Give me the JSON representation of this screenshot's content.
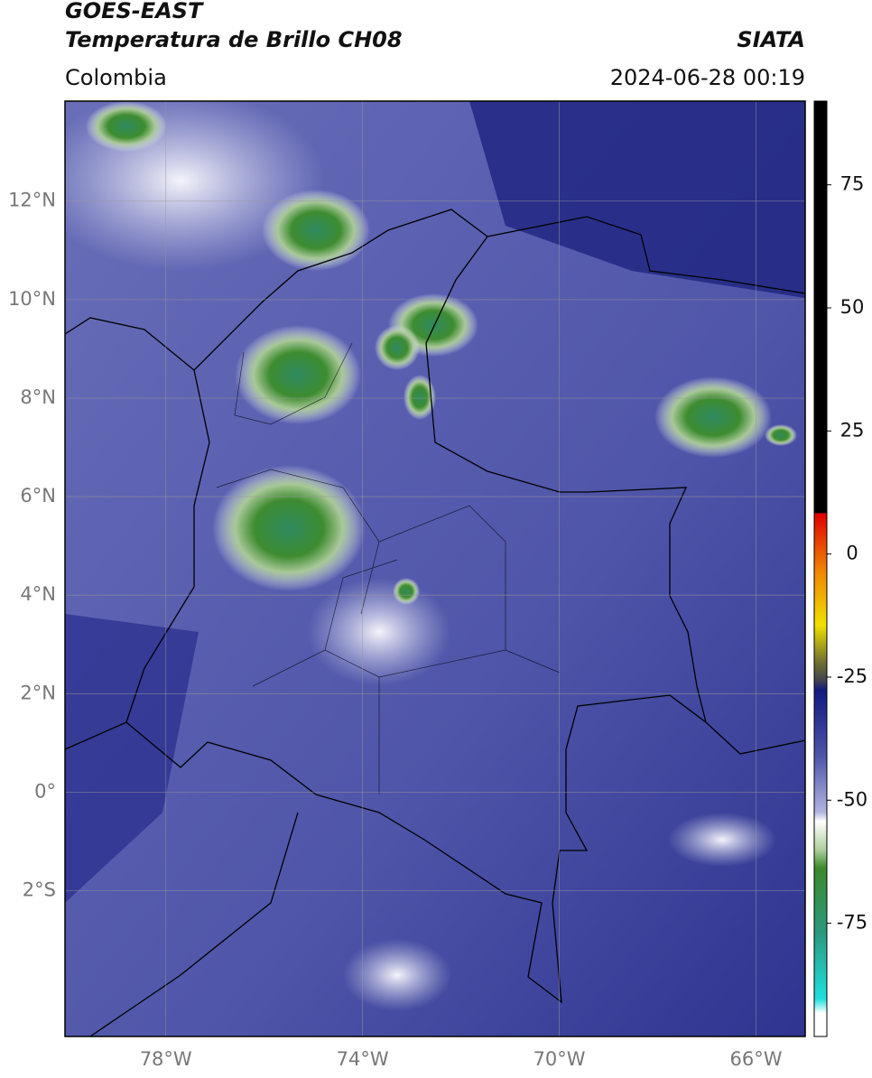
{
  "header": {
    "title": "GOES-EAST",
    "subtitle": "Temperatura de Brillo CH08",
    "source": "SIATA",
    "region": "Colombia",
    "timestamp": "2024-06-28 00:19"
  },
  "map": {
    "lat_range": [
      -4.96,
      14.03
    ],
    "lon_range": [
      -80.05,
      -65.0
    ],
    "lat_ticks": [
      {
        "value": 12,
        "label": "12°N"
      },
      {
        "value": 10,
        "label": "10°N"
      },
      {
        "value": 8,
        "label": "8°N"
      },
      {
        "value": 6,
        "label": "6°N"
      },
      {
        "value": 4,
        "label": "4°N"
      },
      {
        "value": 2,
        "label": "2°N"
      },
      {
        "value": 0,
        "label": "0°"
      },
      {
        "value": -2,
        "label": "2°S"
      }
    ],
    "lon_ticks": [
      {
        "value": -78,
        "label": "78°W"
      },
      {
        "value": -74,
        "label": "74°W"
      },
      {
        "value": -70,
        "label": "70°W"
      },
      {
        "value": -66,
        "label": "66°W"
      }
    ]
  },
  "colorbar": {
    "range": [
      -98,
      92
    ],
    "ticks": [
      75,
      50,
      25,
      0,
      -25,
      -50,
      -75
    ]
  }
}
